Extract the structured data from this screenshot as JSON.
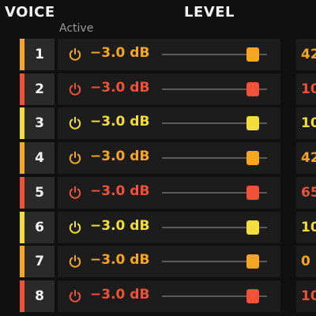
{
  "header": {
    "voice_label": "VOICE",
    "level_label": "LEVEL",
    "active_label": "Active"
  },
  "colors": {
    "orange": "#f5a623",
    "red": "#ef5238",
    "yellow": "#f2dd3a"
  },
  "voices": [
    {
      "number": "1",
      "level": "−3.0 dB",
      "right_value": "42",
      "color": "#f5a623"
    },
    {
      "number": "2",
      "level": "−3.0 dB",
      "right_value": "10",
      "color": "#ef5238"
    },
    {
      "number": "3",
      "level": "−3.0 dB",
      "right_value": "10",
      "color": "#f2dd3a"
    },
    {
      "number": "4",
      "level": "−3.0 dB",
      "right_value": "42",
      "color": "#f5a623"
    },
    {
      "number": "5",
      "level": "−3.0 dB",
      "right_value": "65",
      "color": "#ef5238"
    },
    {
      "number": "6",
      "level": "−3.0 dB",
      "right_value": "10",
      "color": "#f2dd3a"
    },
    {
      "number": "7",
      "level": "−3.0 dB",
      "right_value": "0",
      "color": "#f5a623"
    },
    {
      "number": "8",
      "level": "−3.0 dB",
      "right_value": "10",
      "color": "#ef5238"
    }
  ]
}
